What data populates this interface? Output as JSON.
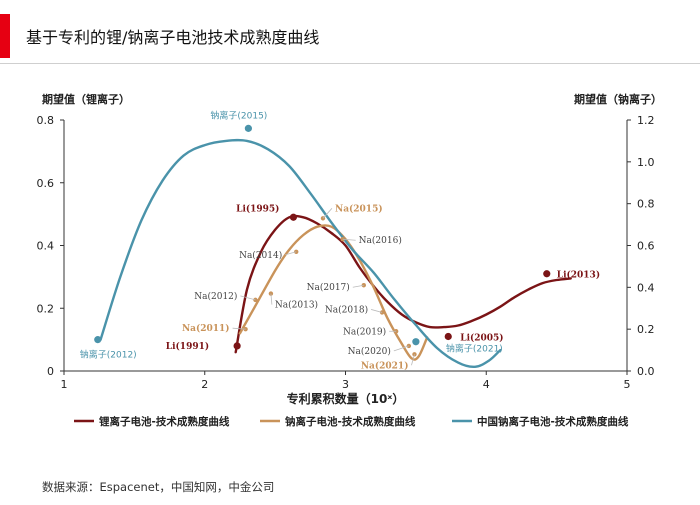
{
  "header": {
    "title": "基于专利的锂/钠离子电池技术成熟度曲线",
    "accent_color": "#e60012"
  },
  "footer": {
    "source": "数据来源：Espacenet，中国知网，中金公司"
  },
  "chart_data": {
    "type": "line",
    "xlabel": "专利累积数量（10ˣ）",
    "ylabel_left": "期望值（锂离子）",
    "ylabel_right": "期望值（钠离子）",
    "xlim": [
      1,
      5
    ],
    "ylim_left": [
      0,
      0.8
    ],
    "ylim_right": [
      0,
      1.2
    ],
    "x_ticks": [
      "1",
      "2",
      "3",
      "4",
      "5"
    ],
    "y_left_ticks": [
      "0",
      "0.2",
      "0.4",
      "0.6",
      "0.8"
    ],
    "y_right_ticks": [
      "0.0",
      "0.2",
      "0.4",
      "0.6",
      "0.8",
      "1.0",
      "1.2"
    ],
    "grid": false,
    "legend_position": "bottom",
    "series": [
      {
        "name": "锂离子电池-技术成熟度曲线",
        "color": "#7b1416",
        "axis": "left",
        "curve": [
          [
            2.22,
            0.06
          ],
          [
            2.3,
            0.26
          ],
          [
            2.4,
            0.38
          ],
          [
            2.5,
            0.45
          ],
          [
            2.6,
            0.49
          ],
          [
            2.7,
            0.49
          ],
          [
            2.8,
            0.47
          ],
          [
            2.9,
            0.44
          ],
          [
            3.0,
            0.4
          ],
          [
            3.1,
            0.33
          ],
          [
            3.2,
            0.27
          ],
          [
            3.3,
            0.22
          ],
          [
            3.4,
            0.18
          ],
          [
            3.5,
            0.155
          ],
          [
            3.6,
            0.14
          ],
          [
            3.7,
            0.14
          ],
          [
            3.8,
            0.145
          ],
          [
            3.9,
            0.16
          ],
          [
            4.0,
            0.18
          ],
          [
            4.1,
            0.205
          ],
          [
            4.2,
            0.235
          ],
          [
            4.3,
            0.26
          ],
          [
            4.4,
            0.28
          ],
          [
            4.5,
            0.29
          ],
          [
            4.6,
            0.295
          ]
        ],
        "points": [
          {
            "label": "Li(1991)",
            "x": 2.23,
            "y": 0.08
          },
          {
            "label": "Li(1995)",
            "x": 2.63,
            "y": 0.49
          },
          {
            "label": "Li(2005)",
            "x": 3.73,
            "y": 0.11
          },
          {
            "label": "Li(2013)",
            "x": 4.43,
            "y": 0.31
          }
        ]
      },
      {
        "name": "钠离子电池-技术成熟度曲线",
        "color": "#c9935a",
        "axis": "right",
        "curve": [
          [
            2.25,
            0.18
          ],
          [
            2.35,
            0.3
          ],
          [
            2.5,
            0.48
          ],
          [
            2.6,
            0.58
          ],
          [
            2.7,
            0.65
          ],
          [
            2.8,
            0.69
          ],
          [
            2.9,
            0.69
          ],
          [
            3.0,
            0.63
          ],
          [
            3.1,
            0.53
          ],
          [
            3.2,
            0.4
          ],
          [
            3.3,
            0.25
          ],
          [
            3.4,
            0.13
          ],
          [
            3.47,
            0.06
          ],
          [
            3.52,
            0.07
          ],
          [
            3.58,
            0.16
          ]
        ],
        "points": [
          {
            "label": "Na(2011)",
            "x": 2.29,
            "y": 0.2
          },
          {
            "label": "Na(2012)",
            "x": 2.36,
            "y": 0.34
          },
          {
            "label": "Na(2013)",
            "x": 2.47,
            "y": 0.37
          },
          {
            "label": "Na(2014)",
            "x": 2.65,
            "y": 0.57
          },
          {
            "label": "Na(2015)",
            "x": 2.84,
            "y": 0.73
          },
          {
            "label": "Na(2016)",
            "x": 2.98,
            "y": 0.63
          },
          {
            "label": "Na(2017)",
            "x": 3.13,
            "y": 0.41
          },
          {
            "label": "Na(2018)",
            "x": 3.26,
            "y": 0.28
          },
          {
            "label": "Na(2019)",
            "x": 3.36,
            "y": 0.19
          },
          {
            "label": "Na(2020)",
            "x": 3.45,
            "y": 0.12
          },
          {
            "label": "Na(2021)",
            "x": 3.49,
            "y": 0.08
          }
        ]
      },
      {
        "name": "中国钠离子电池-技术成熟度曲线",
        "color": "#4a93aa",
        "axis": "right",
        "curve": [
          [
            1.26,
            0.15
          ],
          [
            1.4,
            0.45
          ],
          [
            1.55,
            0.72
          ],
          [
            1.7,
            0.91
          ],
          [
            1.85,
            1.03
          ],
          [
            2.0,
            1.08
          ],
          [
            2.15,
            1.1
          ],
          [
            2.3,
            1.1
          ],
          [
            2.45,
            1.06
          ],
          [
            2.6,
            0.98
          ],
          [
            2.75,
            0.85
          ],
          [
            2.9,
            0.71
          ],
          [
            3.05,
            0.58
          ],
          [
            3.2,
            0.47
          ],
          [
            3.35,
            0.34
          ],
          [
            3.5,
            0.22
          ],
          [
            3.65,
            0.11
          ],
          [
            3.8,
            0.04
          ],
          [
            3.92,
            0.02
          ],
          [
            4.02,
            0.05
          ],
          [
            4.1,
            0.1
          ]
        ],
        "points": [
          {
            "label": "钠离子(2012)",
            "x": 1.24,
            "y": 0.15
          },
          {
            "label": "钠离子(2015)",
            "x": 2.31,
            "y": 1.16
          },
          {
            "label": "钠离子(2021)",
            "x": 3.5,
            "y": 0.14
          }
        ]
      }
    ]
  }
}
